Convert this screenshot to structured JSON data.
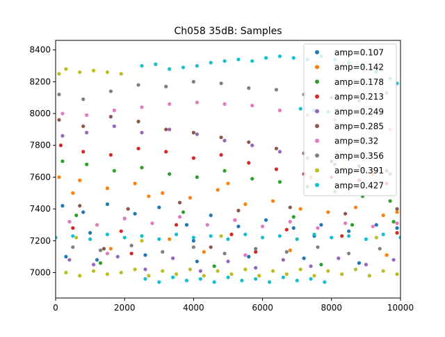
{
  "chart_data": {
    "type": "scatter",
    "title": "Ch058 35dB: Samples",
    "xlabel": "",
    "ylabel": "",
    "xlim": [
      0,
      10000
    ],
    "ylim": [
      6840,
      8460
    ],
    "xticks": [
      0,
      2000,
      4000,
      6000,
      8000,
      10000
    ],
    "yticks": [
      7000,
      7200,
      7400,
      7600,
      7800,
      8000,
      8200,
      8400
    ],
    "xtick_labels": [
      "0",
      "2000",
      "4000",
      "6000",
      "8000",
      "10000"
    ],
    "ytick_labels": [
      "7000",
      "7200",
      "7400",
      "7600",
      "7800",
      "8000",
      "8200",
      "8400"
    ],
    "grid": false,
    "legend_position": "top-right",
    "series": [
      {
        "name": "amp=0.107",
        "color": "#1f77b4",
        "points": [
          [
            200,
            7420
          ],
          [
            800,
            7380
          ],
          [
            1500,
            7430
          ],
          [
            2300,
            7370
          ],
          [
            3000,
            7410
          ],
          [
            3800,
            7300
          ],
          [
            4500,
            7360
          ],
          [
            5300,
            7290
          ],
          [
            6100,
            7330
          ],
          [
            6900,
            7280
          ],
          [
            7700,
            7300
          ],
          [
            8500,
            7260
          ],
          [
            9300,
            7300
          ],
          [
            9900,
            7280
          ],
          [
            300,
            7100
          ],
          [
            1200,
            7080
          ],
          [
            2600,
            7110
          ],
          [
            4100,
            7070
          ],
          [
            5600,
            7100
          ],
          [
            7200,
            7090
          ],
          [
            8800,
            7060
          ],
          [
            1000,
            7250
          ],
          [
            4000,
            7200
          ],
          [
            7500,
            7230
          ]
        ]
      },
      {
        "name": "amp=0.142",
        "color": "#ff7f0e",
        "points": [
          [
            100,
            7600
          ],
          [
            700,
            7580
          ],
          [
            1500,
            7530
          ],
          [
            2300,
            7560
          ],
          [
            3100,
            7500
          ],
          [
            3900,
            7470
          ],
          [
            4700,
            7520
          ],
          [
            5500,
            7430
          ],
          [
            6300,
            7450
          ],
          [
            7100,
            7400
          ],
          [
            7900,
            7380
          ],
          [
            8700,
            7410
          ],
          [
            9500,
            7360
          ],
          [
            9900,
            7380
          ],
          [
            500,
            7500
          ],
          [
            2700,
            7480
          ],
          [
            5000,
            7560
          ],
          [
            7400,
            7600
          ],
          [
            9200,
            7620
          ],
          [
            1600,
            7150
          ],
          [
            4300,
            7130
          ],
          [
            6800,
            7140
          ],
          [
            9600,
            7110
          ],
          [
            3300,
            7210
          ]
        ]
      },
      {
        "name": "amp=0.178",
        "color": "#2ca02c",
        "points": [
          [
            200,
            7700
          ],
          [
            900,
            7680
          ],
          [
            1700,
            7640
          ],
          [
            2500,
            7660
          ],
          [
            3300,
            7620
          ],
          [
            4100,
            7600
          ],
          [
            4900,
            7640
          ],
          [
            5700,
            7590
          ],
          [
            6500,
            7570
          ],
          [
            7300,
            7540
          ],
          [
            8100,
            7510
          ],
          [
            8900,
            7480
          ],
          [
            9700,
            7450
          ],
          [
            600,
            7360
          ],
          [
            2000,
            7340
          ],
          [
            3700,
            7380
          ],
          [
            5200,
            7330
          ],
          [
            6900,
            7350
          ],
          [
            8600,
            7300
          ],
          [
            9800,
            7320
          ],
          [
            1300,
            7060
          ],
          [
            4600,
            7040
          ],
          [
            7700,
            7050
          ]
        ]
      },
      {
        "name": "amp=0.213",
        "color": "#d62728",
        "points": [
          [
            150,
            7800
          ],
          [
            800,
            7760
          ],
          [
            1600,
            7740
          ],
          [
            2400,
            7780
          ],
          [
            3200,
            7760
          ],
          [
            4000,
            7720
          ],
          [
            4800,
            7740
          ],
          [
            5600,
            7690
          ],
          [
            6400,
            7650
          ],
          [
            7200,
            7620
          ],
          [
            8000,
            7600
          ],
          [
            8800,
            7580
          ],
          [
            9600,
            7560
          ],
          [
            500,
            7280
          ],
          [
            1900,
            7260
          ],
          [
            3500,
            7300
          ],
          [
            5100,
            7240
          ],
          [
            6700,
            7270
          ],
          [
            8300,
            7230
          ],
          [
            9900,
            7250
          ],
          [
            2200,
            7120
          ],
          [
            5800,
            7130
          ]
        ]
      },
      {
        "name": "amp=0.249",
        "color": "#9467bd",
        "points": [
          [
            200,
            7860
          ],
          [
            900,
            7880
          ],
          [
            1700,
            7920
          ],
          [
            2500,
            7880
          ],
          [
            3300,
            7900
          ],
          [
            4100,
            7870
          ],
          [
            4900,
            7830
          ],
          [
            5700,
            7800
          ],
          [
            6500,
            7760
          ],
          [
            7300,
            7720
          ],
          [
            8100,
            7680
          ],
          [
            8900,
            7650
          ],
          [
            9700,
            7620
          ],
          [
            400,
            7080
          ],
          [
            1100,
            7050
          ],
          [
            1800,
            7100
          ],
          [
            2600,
            7020
          ],
          [
            3400,
            7090
          ],
          [
            4200,
            7010
          ],
          [
            5000,
            7070
          ],
          [
            5800,
            7030
          ],
          [
            6600,
            7080
          ],
          [
            7400,
            7040
          ],
          [
            8200,
            7090
          ],
          [
            9000,
            7050
          ],
          [
            9800,
            7080
          ]
        ]
      },
      {
        "name": "amp=0.285",
        "color": "#8c564b",
        "points": [
          [
            100,
            7960
          ],
          [
            800,
            7920
          ],
          [
            1600,
            7980
          ],
          [
            2400,
            7950
          ],
          [
            3200,
            7900
          ],
          [
            4000,
            7880
          ],
          [
            4800,
            7850
          ],
          [
            5600,
            7820
          ],
          [
            6400,
            7780
          ],
          [
            7200,
            7750
          ],
          [
            8000,
            7700
          ],
          [
            8800,
            7670
          ],
          [
            9600,
            7640
          ],
          [
            700,
            7420
          ],
          [
            2100,
            7400
          ],
          [
            3600,
            7440
          ],
          [
            5300,
            7390
          ],
          [
            6800,
            7410
          ],
          [
            8400,
            7370
          ],
          [
            9900,
            7400
          ],
          [
            1400,
            7150
          ],
          [
            4500,
            7160
          ]
        ]
      },
      {
        "name": "amp=0.32",
        "color": "#e377c2",
        "points": [
          [
            200,
            8000
          ],
          [
            900,
            7990
          ],
          [
            1700,
            8020
          ],
          [
            2500,
            8040
          ],
          [
            3300,
            8060
          ],
          [
            4100,
            8070
          ],
          [
            4900,
            8060
          ],
          [
            5700,
            8050
          ],
          [
            6500,
            8020
          ],
          [
            7300,
            7990
          ],
          [
            8100,
            7960
          ],
          [
            8900,
            7930
          ],
          [
            9700,
            7900
          ],
          [
            400,
            7320
          ],
          [
            1200,
            7300
          ],
          [
            2000,
            7340
          ],
          [
            2800,
            7310
          ],
          [
            3600,
            7350
          ],
          [
            4400,
            7300
          ],
          [
            5200,
            7330
          ],
          [
            6000,
            7290
          ],
          [
            6800,
            7320
          ],
          [
            7600,
            7280
          ],
          [
            8400,
            7310
          ],
          [
            9200,
            7290
          ],
          [
            9900,
            7310
          ],
          [
            1500,
            7120
          ],
          [
            5500,
            7110
          ]
        ]
      },
      {
        "name": "amp=0.356",
        "color": "#7f7f7f",
        "points": [
          [
            100,
            8120
          ],
          [
            800,
            8090
          ],
          [
            1600,
            8140
          ],
          [
            2400,
            8180
          ],
          [
            3200,
            8170
          ],
          [
            4000,
            8200
          ],
          [
            4800,
            8190
          ],
          [
            5600,
            8160
          ],
          [
            6400,
            8150
          ],
          [
            7200,
            8120
          ],
          [
            8000,
            8100
          ],
          [
            8800,
            8080
          ],
          [
            9600,
            8130
          ],
          [
            500,
            7160
          ],
          [
            1300,
            7140
          ],
          [
            2200,
            7170
          ],
          [
            3100,
            7130
          ],
          [
            4000,
            7160
          ],
          [
            4900,
            7120
          ],
          [
            5800,
            7150
          ],
          [
            6700,
            7130
          ],
          [
            7600,
            7160
          ],
          [
            8500,
            7120
          ],
          [
            9400,
            7150
          ]
        ]
      },
      {
        "name": "amp=0.391",
        "color": "#bcbd22",
        "points": [
          [
            100,
            8250
          ],
          [
            300,
            8280
          ],
          [
            700,
            8260
          ],
          [
            1100,
            8270
          ],
          [
            1500,
            8260
          ],
          [
            1900,
            8250
          ],
          [
            300,
            7000
          ],
          [
            700,
            6980
          ],
          [
            1100,
            7010
          ],
          [
            1500,
            6990
          ],
          [
            1900,
            7000
          ],
          [
            2300,
            7020
          ],
          [
            2700,
            6980
          ],
          [
            3100,
            7010
          ],
          [
            3500,
            6990
          ],
          [
            3900,
            7020
          ],
          [
            4300,
            6980
          ],
          [
            4700,
            7010
          ],
          [
            5100,
            6990
          ],
          [
            5500,
            7020
          ],
          [
            5900,
            6980
          ],
          [
            6300,
            7010
          ],
          [
            6700,
            6990
          ],
          [
            7100,
            7020
          ],
          [
            7500,
            6980
          ],
          [
            7900,
            7010
          ],
          [
            8300,
            6990
          ],
          [
            8700,
            7020
          ],
          [
            9100,
            6980
          ],
          [
            9500,
            7010
          ],
          [
            9900,
            6990
          ],
          [
            600,
            7220
          ],
          [
            2500,
            7200
          ],
          [
            4800,
            7230
          ],
          [
            7000,
            7210
          ],
          [
            9300,
            7220
          ]
        ]
      },
      {
        "name": "amp=0.427",
        "color": "#17becf",
        "points": [
          [
            2500,
            8300
          ],
          [
            2900,
            8310
          ],
          [
            3300,
            8280
          ],
          [
            3700,
            8290
          ],
          [
            4100,
            8300
          ],
          [
            4500,
            8320
          ],
          [
            4900,
            8330
          ],
          [
            5300,
            8340
          ],
          [
            5700,
            8330
          ],
          [
            6100,
            8350
          ],
          [
            6500,
            8360
          ],
          [
            6900,
            8350
          ],
          [
            7300,
            8340
          ],
          [
            7700,
            8360
          ],
          [
            8100,
            8340
          ],
          [
            8500,
            8320
          ],
          [
            8900,
            8300
          ],
          [
            9300,
            8260
          ],
          [
            9700,
            8220
          ],
          [
            9900,
            8190
          ],
          [
            7100,
            8030
          ],
          [
            7500,
            8020
          ],
          [
            7900,
            8010
          ],
          [
            2600,
            6960
          ],
          [
            3000,
            6940
          ],
          [
            3400,
            6970
          ],
          [
            3800,
            6950
          ],
          [
            4200,
            6960
          ],
          [
            4600,
            6940
          ],
          [
            5000,
            6970
          ],
          [
            5400,
            6950
          ],
          [
            5800,
            6960
          ],
          [
            6200,
            6940
          ],
          [
            6600,
            6970
          ],
          [
            7000,
            6950
          ],
          [
            7400,
            6960
          ],
          [
            7800,
            6940
          ],
          [
            0,
            7220
          ],
          [
            500,
            7230
          ],
          [
            1000,
            7210
          ],
          [
            1500,
            7240
          ],
          [
            2000,
            7220
          ],
          [
            2500,
            7230
          ],
          [
            3000,
            7210
          ],
          [
            3500,
            7240
          ],
          [
            4000,
            7220
          ],
          [
            4500,
            7230
          ],
          [
            5000,
            7210
          ],
          [
            5500,
            7240
          ],
          [
            6000,
            7220
          ],
          [
            6500,
            7230
          ],
          [
            7000,
            7210
          ],
          [
            7500,
            7240
          ],
          [
            8000,
            7220
          ],
          [
            8500,
            7230
          ],
          [
            9000,
            7210
          ],
          [
            9500,
            7240
          ],
          [
            10000,
            7220
          ]
        ]
      }
    ]
  }
}
